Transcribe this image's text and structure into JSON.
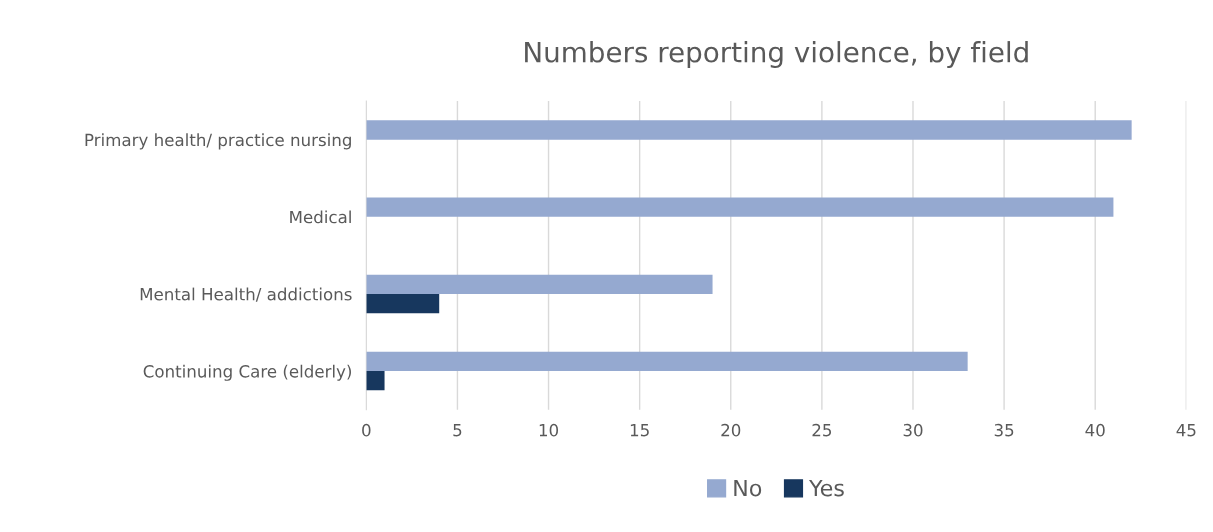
{
  "chart_data": {
    "type": "bar",
    "orientation": "horizontal",
    "title": "Numbers reporting violence, by field",
    "categories": [
      "Primary health/ practice nursing",
      "Medical",
      "Mental Health/ addictions",
      "Continuing Care (elderly)"
    ],
    "series": [
      {
        "name": "No",
        "color": "#95a9d0",
        "values": [
          42,
          41,
          19,
          33
        ]
      },
      {
        "name": "Yes",
        "color": "#17375e",
        "values": [
          0,
          0,
          4,
          1
        ]
      }
    ],
    "xlim": [
      0,
      45
    ],
    "xticks": [
      0,
      5,
      10,
      15,
      20,
      25,
      30,
      35,
      40,
      45
    ],
    "grid": "x",
    "legend": "bottom"
  }
}
